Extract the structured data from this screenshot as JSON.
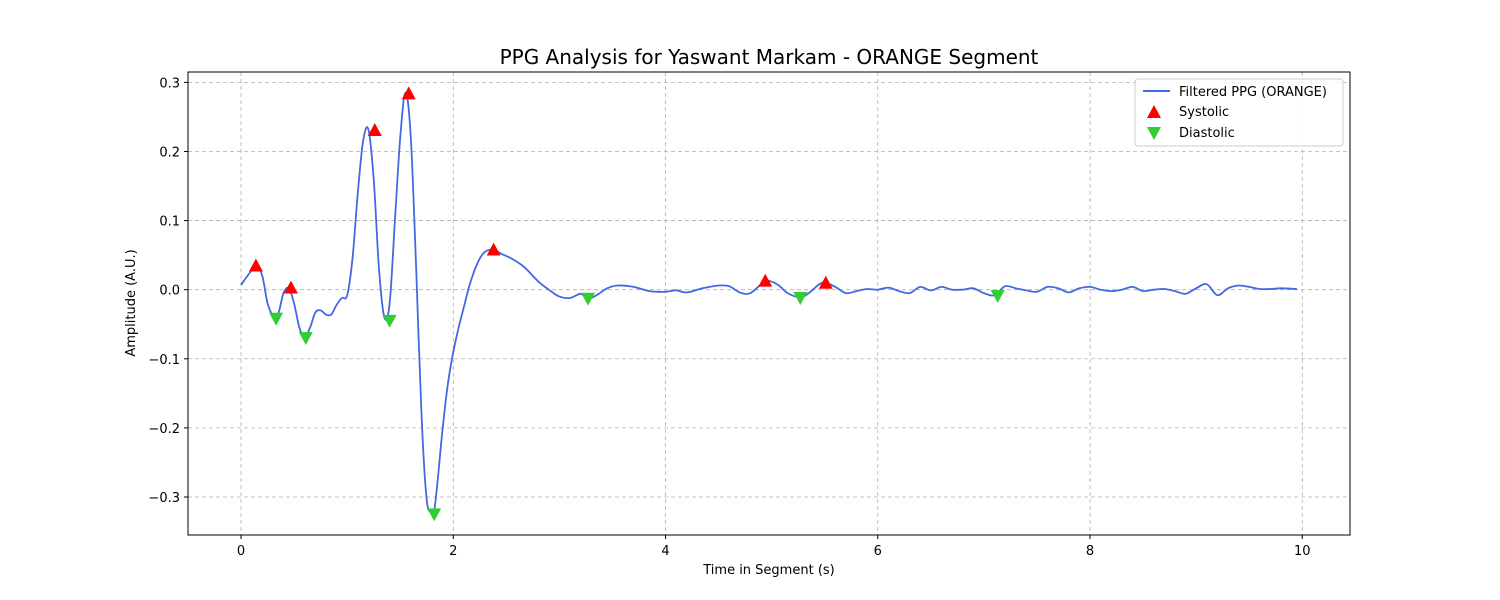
{
  "chart_data": {
    "type": "line",
    "title": "PPG Analysis for Yaswant Markam - ORANGE Segment",
    "xlabel": "Time in Segment (s)",
    "ylabel": "Amplitude (A.U.)",
    "xlim": [
      -0.5,
      10.45
    ],
    "ylim": [
      -0.355,
      0.315
    ],
    "xticks": [
      0,
      2,
      4,
      6,
      8,
      10
    ],
    "xtick_labels": [
      "0",
      "2",
      "4",
      "6",
      "8",
      "10"
    ],
    "yticks": [
      -0.3,
      -0.2,
      -0.1,
      0.0,
      0.1,
      0.2,
      0.3
    ],
    "ytick_labels": [
      "−0.3",
      "−0.2",
      "−0.1",
      "0.0",
      "0.1",
      "0.2",
      "0.3"
    ],
    "grid": true,
    "legend_position": "top-right",
    "colors": {
      "line": "#4169e1",
      "systolic": "#ff0000",
      "diastolic": "#32cd32"
    },
    "series": [
      {
        "name": "Filtered PPG (ORANGE)",
        "kind": "line",
        "x": [
          0,
          0.1,
          0.15,
          0.2,
          0.25,
          0.3,
          0.33,
          0.36,
          0.4,
          0.45,
          0.5,
          0.55,
          0.6,
          0.65,
          0.7,
          0.75,
          0.8,
          0.85,
          0.9,
          0.95,
          1.0,
          1.05,
          1.1,
          1.15,
          1.2,
          1.25,
          1.3,
          1.35,
          1.4,
          1.45,
          1.5,
          1.55,
          1.6,
          1.65,
          1.7,
          1.75,
          1.8,
          1.82,
          1.85,
          1.9,
          1.95,
          2.0,
          2.05,
          2.1,
          2.15,
          2.2,
          2.25,
          2.3,
          2.38,
          2.45,
          2.55,
          2.65,
          2.7,
          2.8,
          2.9,
          3.0,
          3.1,
          3.2,
          3.27,
          3.35,
          3.45,
          3.55,
          3.7,
          3.85,
          4.0,
          4.1,
          4.2,
          4.35,
          4.5,
          4.6,
          4.7,
          4.8,
          4.94,
          5.05,
          5.15,
          5.27,
          5.35,
          5.45,
          5.51,
          5.6,
          5.7,
          5.8,
          5.9,
          6.0,
          6.1,
          6.2,
          6.3,
          6.4,
          6.5,
          6.6,
          6.7,
          6.8,
          6.9,
          7.0,
          7.1,
          7.2,
          7.3,
          7.4,
          7.5,
          7.6,
          7.7,
          7.8,
          7.9,
          8.0,
          8.1,
          8.2,
          8.3,
          8.4,
          8.5,
          8.6,
          8.7,
          8.8,
          8.9,
          9.0,
          9.1,
          9.2,
          9.3,
          9.4,
          9.5,
          9.6,
          9.7,
          9.8,
          9.95
        ],
        "y": [
          0.007,
          0.028,
          0.034,
          0.02,
          -0.02,
          -0.038,
          -0.04,
          -0.03,
          -0.005,
          0.002,
          -0.02,
          -0.055,
          -0.068,
          -0.055,
          -0.033,
          -0.03,
          -0.036,
          -0.036,
          -0.022,
          -0.012,
          -0.008,
          0.045,
          0.14,
          0.215,
          0.232,
          0.16,
          0.03,
          -0.04,
          -0.02,
          0.1,
          0.22,
          0.285,
          0.22,
          0.03,
          -0.18,
          -0.305,
          -0.32,
          -0.32,
          -0.28,
          -0.2,
          -0.135,
          -0.09,
          -0.055,
          -0.025,
          0.005,
          0.028,
          0.045,
          0.055,
          0.058,
          0.052,
          0.045,
          0.035,
          0.028,
          0.012,
          0.0,
          -0.01,
          -0.012,
          -0.006,
          -0.013,
          -0.008,
          0.002,
          0.006,
          0.004,
          -0.002,
          -0.003,
          -0.001,
          -0.004,
          0.002,
          0.006,
          0.005,
          -0.004,
          -0.005,
          0.012,
          0.008,
          -0.005,
          -0.011,
          -0.005,
          0.008,
          0.01,
          0.004,
          -0.005,
          -0.002,
          0.001,
          0.0,
          0.003,
          -0.002,
          -0.005,
          0.004,
          -0.001,
          0.004,
          0.0,
          0.0,
          0.002,
          -0.005,
          -0.008,
          0.005,
          0.002,
          -0.001,
          -0.003,
          0.004,
          0.002,
          -0.004,
          0.002,
          0.004,
          0.0,
          -0.002,
          0.0,
          0.004,
          -0.002,
          0.0,
          0.001,
          -0.002,
          -0.006,
          0.002,
          0.008,
          -0.008,
          0.002,
          0.006,
          0.004,
          0.001,
          0.001,
          0.002,
          0.001
        ]
      },
      {
        "name": "Systolic",
        "kind": "marker-up",
        "x": [
          0.14,
          0.47,
          1.26,
          1.58,
          2.38,
          4.94,
          5.51
        ],
        "y": [
          0.035,
          0.003,
          0.231,
          0.284,
          0.058,
          0.013,
          0.01
        ]
      },
      {
        "name": "Diastolic",
        "kind": "marker-down",
        "x": [
          0.33,
          0.61,
          1.4,
          1.82,
          3.27,
          5.27,
          7.13
        ],
        "y": [
          -0.042,
          -0.07,
          -0.045,
          -0.325,
          -0.013,
          -0.012,
          -0.009
        ]
      }
    ]
  }
}
